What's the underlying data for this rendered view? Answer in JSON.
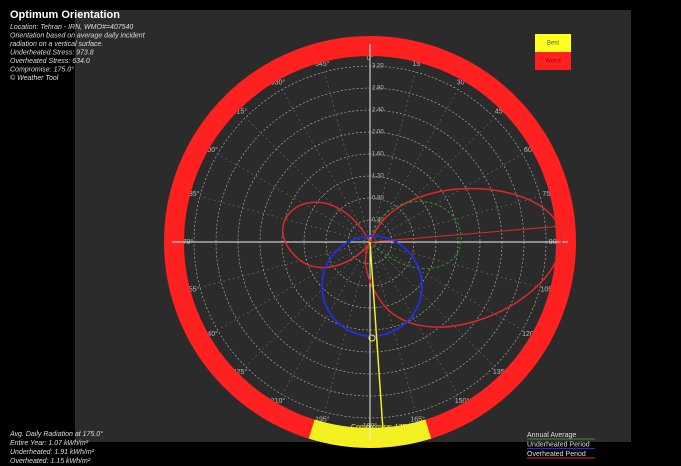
{
  "header": {
    "title": "Optimum Orientation",
    "lines": [
      "Location: Tehran - IRN, WMO#=407540",
      "Orientation based on average daily incident",
      "radiation on a vertical surface.",
      "Underheated Stress: 973.8",
      "Overheated Stress: 634.0",
      "Compromise: 175.0°",
      "© Weather Tool"
    ]
  },
  "legend": {
    "best": "Best",
    "worst": "Worst"
  },
  "summary": {
    "lines": [
      "Avg. Daily Radiation at 175.0°",
      "Entire Year: 1.07 kWh/m²",
      "Underheated: 1.91 kWh/m²",
      "Overheated: 1.15 kWh/m²"
    ]
  },
  "key": {
    "items": [
      "Annual Average",
      "Underheated Period",
      "Overheated Period"
    ]
  },
  "compass": {
    "angles": [
      "0°",
      "15°",
      "30°",
      "45°",
      "60°",
      "75°",
      "90°",
      "105°",
      "120°",
      "135°",
      "150°",
      "165°",
      "180°",
      "195°",
      "210°",
      "225°",
      "240°",
      "255°",
      "270°",
      "285°",
      "300°",
      "315°",
      "330°",
      "345°"
    ],
    "radii": [
      "0.40",
      "0.80",
      "1.20",
      "1.60",
      "2.00",
      "2.40",
      "2.80",
      "3.20"
    ],
    "compromise": "Compromise: 175.0°"
  }
}
